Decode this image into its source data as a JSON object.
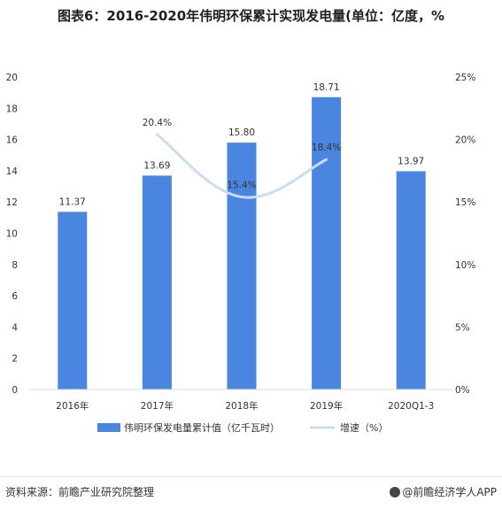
{
  "chart_data": {
    "type": "bar",
    "title": "图表6：2016-2020年伟明环保累计实现发电量(单位：亿度，%",
    "categories": [
      "2016年",
      "2017年",
      "2018年",
      "2019年",
      "2020Q1-3"
    ],
    "series": [
      {
        "name": "伟明环保发电量累计值（亿千瓦时）",
        "type": "bar",
        "axis": "left",
        "values": [
          11.37,
          13.69,
          15.8,
          18.71,
          13.97
        ],
        "labels": [
          "11.37",
          "13.69",
          "15.80",
          "18.71",
          "13.97"
        ],
        "color": "#4a86e0"
      },
      {
        "name": "增速（%）",
        "type": "line",
        "axis": "right",
        "values": [
          null,
          20.4,
          15.4,
          18.4,
          null
        ],
        "labels": [
          "",
          "20.4%",
          "15.4%",
          "18.4%",
          ""
        ],
        "color": "#c9ddf2"
      }
    ],
    "y_left": {
      "min": 0,
      "max": 20,
      "ticks": [
        "0",
        "2",
        "4",
        "6",
        "8",
        "10",
        "12",
        "14",
        "16",
        "18",
        "20"
      ]
    },
    "y_right": {
      "min": 0,
      "max": 25,
      "ticks": [
        "0%",
        "5%",
        "10%",
        "15%",
        "20%",
        "25%"
      ]
    },
    "grid": false,
    "legend": "bottom"
  },
  "footer": {
    "source": "资料来源：前瞻产业研究院整理",
    "brand": "@前瞻经济学人APP"
  }
}
